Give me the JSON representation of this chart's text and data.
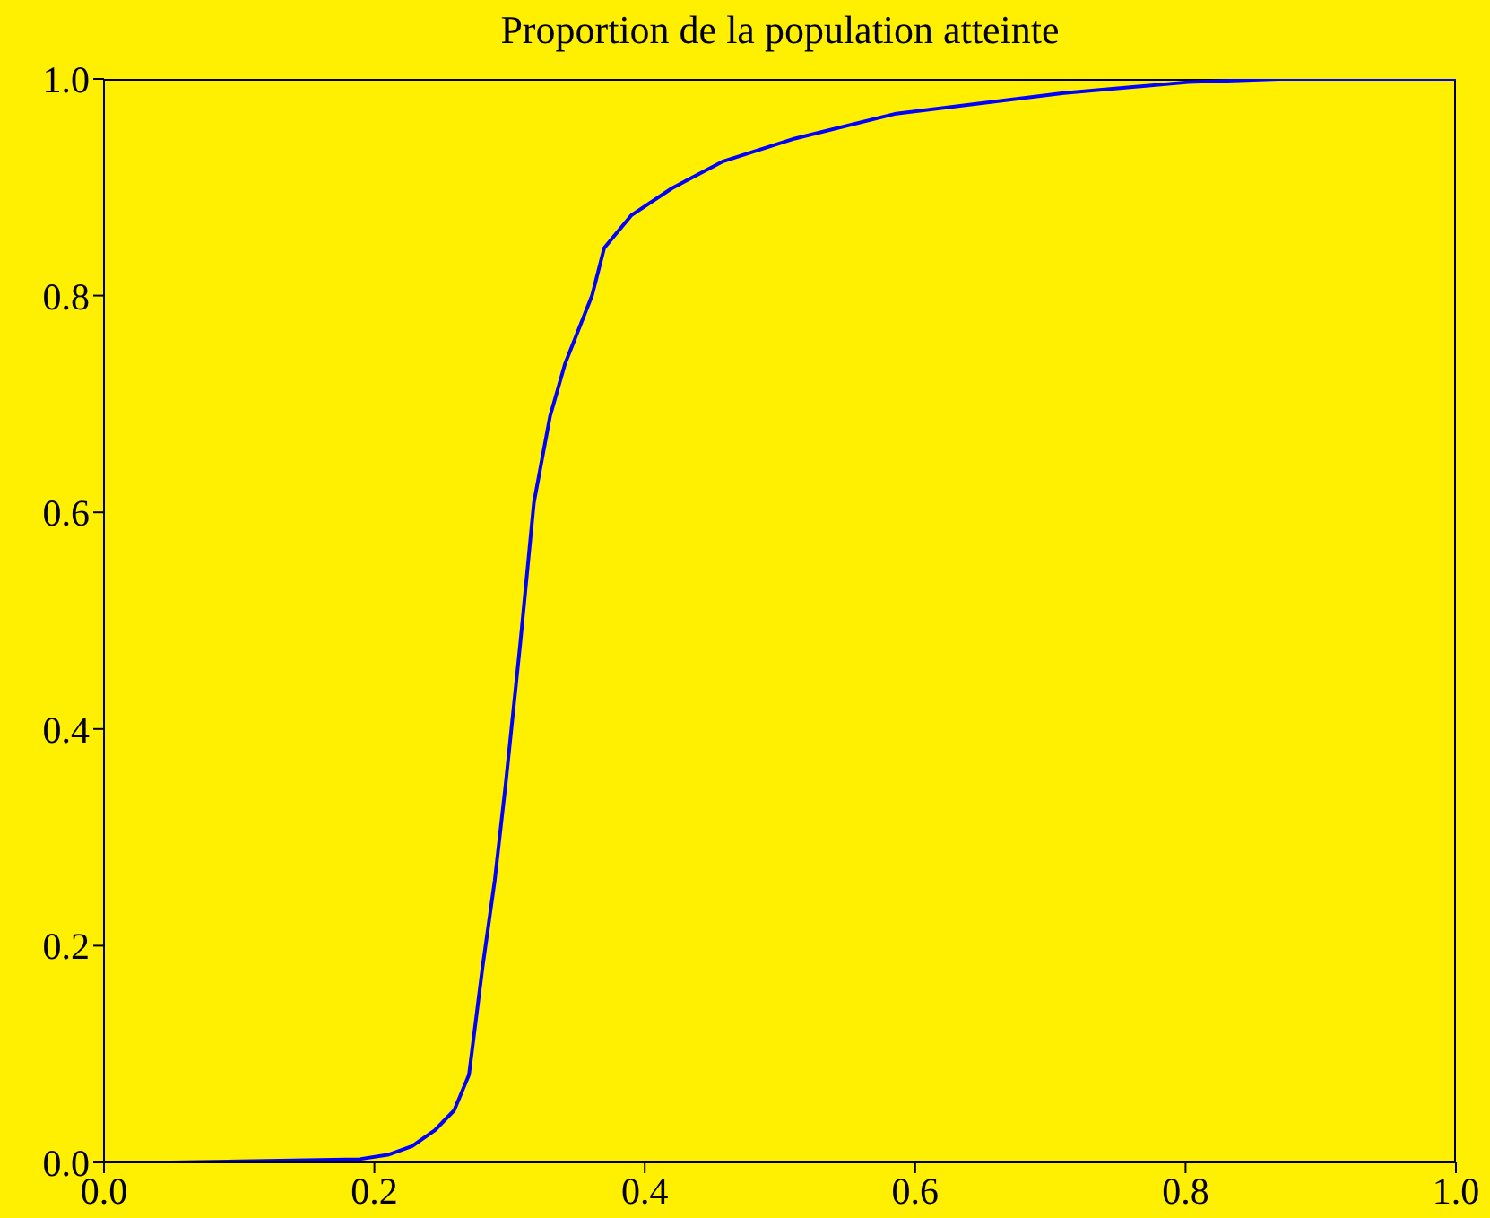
{
  "chart_data": {
    "type": "line",
    "title": "Proportion de la population atteinte",
    "x": [
      0,
      0.05,
      0.1,
      0.15,
      0.189,
      0.21,
      0.228,
      0.245,
      0.259,
      0.27,
      0.28,
      0.289,
      0.297,
      0.308,
      0.318,
      0.33,
      0.341,
      0.361,
      0.37,
      0.39,
      0.42,
      0.458,
      0.511,
      0.586,
      0.71,
      0.802,
      0.869,
      1.0
    ],
    "series": [
      {
        "color": "#0000ff",
        "values": [
          0,
          0,
          0.001,
          0.002,
          0.003,
          0.007,
          0.015,
          0.03,
          0.048,
          0.081,
          0.18,
          0.26,
          0.348,
          0.48,
          0.609,
          0.689,
          0.737,
          0.8,
          0.844,
          0.874,
          0.899,
          0.924,
          0.945,
          0.968,
          0.987,
          0.997,
          1.0,
          1.0
        ]
      }
    ],
    "xlim": [
      0,
      1
    ],
    "ylim": [
      0,
      1
    ],
    "xticks": [
      {
        "value": 0,
        "label": "0.0"
      },
      {
        "value": 0.2,
        "label": "0.2"
      },
      {
        "value": 0.4,
        "label": "0.4"
      },
      {
        "value": 0.6,
        "label": "0.6"
      },
      {
        "value": 0.8,
        "label": "0.8"
      },
      {
        "value": 1,
        "label": "1.0"
      }
    ],
    "yticks": [
      {
        "value": 0,
        "label": "0.0"
      },
      {
        "value": 0.2,
        "label": "0.2"
      },
      {
        "value": 0.4,
        "label": "0.4"
      },
      {
        "value": 0.6,
        "label": "0.6"
      },
      {
        "value": 0.8,
        "label": "0.8"
      },
      {
        "value": 1,
        "label": "1.0"
      }
    ],
    "grid": false,
    "legend": false,
    "marker": "none",
    "line_style": "solid"
  }
}
